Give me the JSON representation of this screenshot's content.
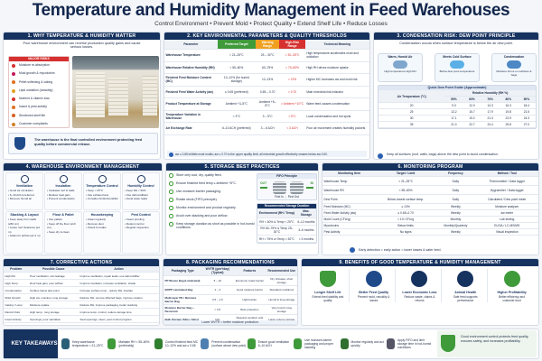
{
  "header": {
    "title": "Temperature and Humidity Management in Feed Warehouses",
    "subtitle": "Control Environment  •  Prevent Mold  •  Protect Quality  •  Extend Shelf Life  •  Reduce Losses"
  },
  "s1": {
    "title": "1. WHY TEMPERATURE & HUMIDITY MATTER",
    "intro": "Poor warehouse environment can reverse production quality gains and cause serious losses.",
    "risks_title": "MAJOR RISKS",
    "risks": [
      "Moisture re-absorption",
      "Mold growth & mycotoxins",
      "Pellet softening & caking",
      "Lipid oxidation (rancidity)",
      "Nutrient & vitamin loss",
      "Insect & pest activity",
      "Shortened shelf life",
      "Customer complaints"
    ],
    "note": "The warehouse is the final controlled environment protecting feed quality before commercial release."
  },
  "s2": {
    "title": "2. KEY ENVIRONMENTAL PARAMETERS & QUALITY THRESHOLDS",
    "headers": [
      "Parameter",
      "Preferred Target",
      "Warning Range",
      "High-Risk Range",
      "Technical Meaning"
    ],
    "rows": [
      [
        "Warehouse Temperature",
        "< 21–25°C",
        "25 – 30°C",
        "> 30–35°C",
        "High temperature accelerates mold and oxidation"
      ],
      [
        "Warehouse Relative Humidity (RH)",
        "< 55–60%",
        "60–75%",
        "> 75–80%",
        "High RH drives moisture uptake"
      ],
      [
        "Finished Feed Moisture Content (MC)",
        "10–12% (for humid storage)",
        "12–13%",
        "> 13%",
        "Higher MC increases aw and mold risk"
      ],
      [
        "Finished Feed Water Activity (aw)",
        "≤ 0.65 (preferred)",
        "0.65 – 0.70",
        "> 0.70",
        "Main microbial risk indicator"
      ],
      [
        "Product Temperature at Storage",
        "Ambient +3–5°C",
        "Ambient +5–8°C",
        "> Ambient +10°C",
        "Warm feed causes condensation"
      ],
      [
        "Temperature Variation in Warehouse",
        "< 3°C",
        "3 – 5°C",
        "> 5°C",
        "Local condensation and hot spots"
      ],
      [
        "Air Exchange Rate",
        "6–10 ACH (preferred)",
        "3 – 6 ACH",
        "< 3 ACH",
        "Poor air movement creates humidity pockets"
      ]
    ],
    "note": "aw ≤ 0.65 inhibits most molds; aw ≤ 0.70 is the upper quality limit; all microbial growth effectively ceases below aw 0.60."
  },
  "s3": {
    "title": "3. CONDENSATION RISK: DEW POINT PRINCIPLE",
    "intro": "Condensation occurs when surface temperature is below the air dew point.",
    "steps": [
      {
        "title": "Warm, Humid Air",
        "desc": "High temperature High RH"
      },
      {
        "title": "Meets Cold Surface",
        "desc": "Below dew point temperature"
      },
      {
        "title": "Condensation",
        "desc": "Moisture forms on surfaces & bags"
      }
    ],
    "table_title": "Quick Dew Point Guide (Approximate)",
    "col_group": "Relative Humidity (RH %)",
    "row_header": "Air Temperature (°C)",
    "cols": [
      "50%",
      "60%",
      "70%",
      "80%",
      "90%"
    ],
    "rows": [
      [
        "20",
        "9.3",
        "12.0",
        "14.3",
        "16.3",
        "18.4"
      ],
      [
        "25",
        "13.2",
        "15.7",
        "17.9",
        "19.8",
        "21.5"
      ],
      [
        "30",
        "17.1",
        "19.2",
        "21.3",
        "22.9",
        "24.3"
      ],
      [
        "35",
        "21.0",
        "22.7",
        "24.4",
        "25.8",
        "27.0"
      ]
    ],
    "note": "Keep all surfaces (roof, walls, bags) above the dew point to avoid condensation."
  },
  "s4": {
    "title": "4. WAREHOUSE ENVIRONMENT MANAGEMENT",
    "cards": [
      {
        "title": "Ventilation",
        "items": [
          "Good air circulation",
          "6–10 ACH preferred",
          "Remove humid air"
        ]
      },
      {
        "title": "Insulation",
        "items": [
          "Insulated roof & walls",
          "Reduce heat gain",
          "Prevent condensation"
        ]
      },
      {
        "title": "Temperature Control",
        "items": [
          "Keep < 25°C",
          "Use exhaust fans",
          "Consider AC/dehumidifier"
        ]
      },
      {
        "title": "Humidity Control",
        "items": [
          "Keep RH < 60%",
          "Use dehumidifiers",
          "Avoid water leaks"
        ]
      },
      {
        "title": "Stacking & Layout",
        "items": [
          "Keep away from walls (≥50 cm)",
          "Leave roof clearance (≥1 m)",
          "Aisles for airflow (≥1.2 m)"
        ]
      },
      {
        "title": "Floor & Pallet",
        "items": [
          "Use pallets",
          "Keep off the floor (≥10 cm)",
          "Keep dry & clean"
        ]
      },
      {
        "title": "Housekeeping",
        "items": [
          "Clean regularly",
          "Remove dust",
          "Check for leaks"
        ]
      },
      {
        "title": "Pest Control",
        "items": [
          "Insect proofing",
          "Rodent control",
          "Regular inspection"
        ]
      }
    ]
  },
  "s5": {
    "title": "5. STORAGE BEST PRACTICES",
    "items": [
      "Store only cool, dry, quality feed.",
      "Ensure finished feed temp ≤ ambient +5°C.",
      "Use moisture-barrier packaging.",
      "Rotate stock (FIFO principle).",
      "Monitor environment and product regularly.",
      "Avoid over-stacking and poor airflow.",
      "Keep storage duration as short as possible in hot-humid conditions."
    ],
    "fifo_title": "FIFO Principle",
    "fifo_out": "OUT",
    "fifo_in": "IN",
    "fifo_caption": "First In → First Out",
    "dur_title": "Recommended Storage Duration",
    "dur_headers": [
      "Environment (RH / Temp)",
      "Max. Storage"
    ],
    "dur_rows": [
      [
        "RH < 60% & Temp < 25°C",
        "6–12 months"
      ],
      [
        "RH 60–75% & Temp 25–30°C",
        "3–6 months"
      ],
      [
        "RH > 75% or Temp > 30°C",
        "< 3 months"
      ]
    ]
  },
  "s6": {
    "title": "6. MONITORING PROGRAM",
    "headers": [
      "Monitoring Item",
      "Target / Limit",
      "Frequency",
      "Method / Tool"
    ],
    "rows": [
      [
        "Warehouse Temp.",
        "< 21–25°C",
        "Daily",
        "Thermometer / Data logger"
      ],
      [
        "Warehouse RH",
        "< 55–60%",
        "Daily",
        "Hygrometer / Data logger"
      ],
      [
        "Dew Point",
        "Below lowest surface temp.",
        "Daily",
        "Calculated / Dew point meter"
      ],
      [
        "Feed Moisture (MC)",
        "≤ 13%",
        "Weekly",
        "Moisture analyzer"
      ],
      [
        "Feed Water Activity (aw)",
        "≤ 0.65–0.70",
        "Weekly",
        "aw meter"
      ],
      [
        "Mold Count (CFU/g)",
        "< 10³ CFU/g",
        "Monthly",
        "Lab testing"
      ],
      [
        "Mycotoxins",
        "Below limits",
        "Monthly/Quarterly",
        "ELISA / LC-MS/MS"
      ],
      [
        "Pest Activity",
        "No signs",
        "Weekly",
        "Visual inspection"
      ]
    ],
    "note": "Early detection = early action = lower losses & safer feed."
  },
  "s7": {
    "title": "7. CORRECTIVE ACTIONS",
    "headers": [
      "Problem",
      "Possible Cause",
      "Action"
    ],
    "rows": [
      [
        "High RH",
        "Poor ventilation, rain leakage",
        "Improve ventilation, repair leaks, use dehumidifier"
      ],
      [
        "High Temp.",
        "Roof heat gain, poor airflow",
        "Improve insulation, increase ventilation, shade"
      ],
      [
        "Condensation",
        "Surface below dew point",
        "Increase surface temp., reduce RH, insulate"
      ],
      [
        "Mold Growth",
        "High aw, moisture, long storage",
        "Reduce RH, remove affected bags, improve rotation"
      ],
      [
        "Caking / Lump",
        "Moisture uptake",
        "Reduce RH, improve packaging, better stacking"
      ],
      [
        "Rancid Odor",
        "High temp., long storage",
        "Improve temp. control, reduce storage time"
      ],
      [
        "Insect Activity",
        "Openings, poor sanitation",
        "Seal openings, clean, pest control program"
      ]
    ]
  },
  "s8": {
    "title": "8. PACKAGING RECOMMENDATIONS",
    "headers": [
      "Packaging Type",
      "WVTR (g/m²/day) (Typical)",
      "Features",
      "Recommended Use"
    ],
    "rows": [
      [
        "PP Woven Bag (Laminated)",
        "5 – 10",
        "Economic, basic barrier",
        "Dry climates, short storage"
      ],
      [
        "BOPP Laminated Bag",
        "1 – 3",
        "Good moisture barrier",
        "Standard conditions"
      ],
      [
        "Multi-layer PE / Moisture Barrier Bag",
        "0.5 – 1.5",
        "High barrier",
        "Humid & long storage"
      ],
      [
        "Moisture Barrier Bag + Desiccant",
        "< 0.5",
        "Best protection",
        "Very humid, long storage"
      ],
      [
        "Bulk Storage (Silos / Bins)",
        "N/A",
        "Requires aeration and monitoring",
        "Large volume storage"
      ]
    ],
    "note": "Lower WVTR = better moisture protection."
  },
  "s9": {
    "title": "9. BENEFITS OF GOOD TEMPERATURE & HUMIDITY MANAGEMENT",
    "items": [
      {
        "title": "Longer Shelf Life",
        "desc": "Extend feed stability and quality"
      },
      {
        "title": "Better Feed Quality",
        "desc": "Prevent mold, rancidity & losses"
      },
      {
        "title": "Lower Economic Loss",
        "desc": "Reduce waste, claims & returns"
      },
      {
        "title": "Animal Health",
        "desc": "Safe feed supports performance"
      },
      {
        "title": "Higher Profitability",
        "desc": "Better efficiency and customer trust"
      }
    ]
  },
  "takeaways": {
    "label": "KEY TAKEAWAYS",
    "items": [
      "Keep warehouse temperature < 21–25°C",
      "Maintain RH < 55–60% (preferably)",
      "Control finished feed MC 10–12% and aw ≤ 0.65",
      "Prevent condensation (surface above dew point)",
      "Ensure good ventilation 6–10 ACH",
      "Use moisture-barrier packaging and proper stacking",
      "Monitor regularly and act quickly",
      "Apply FIFO and limit storage time in hot-humid conditions"
    ],
    "final": "Good environment control protects feed quality, ensures safety, and increases profitability."
  },
  "colors": {
    "navy": "#16325f",
    "green": "#3f9a3a",
    "orange": "#f0a020",
    "red": "#d63030"
  }
}
